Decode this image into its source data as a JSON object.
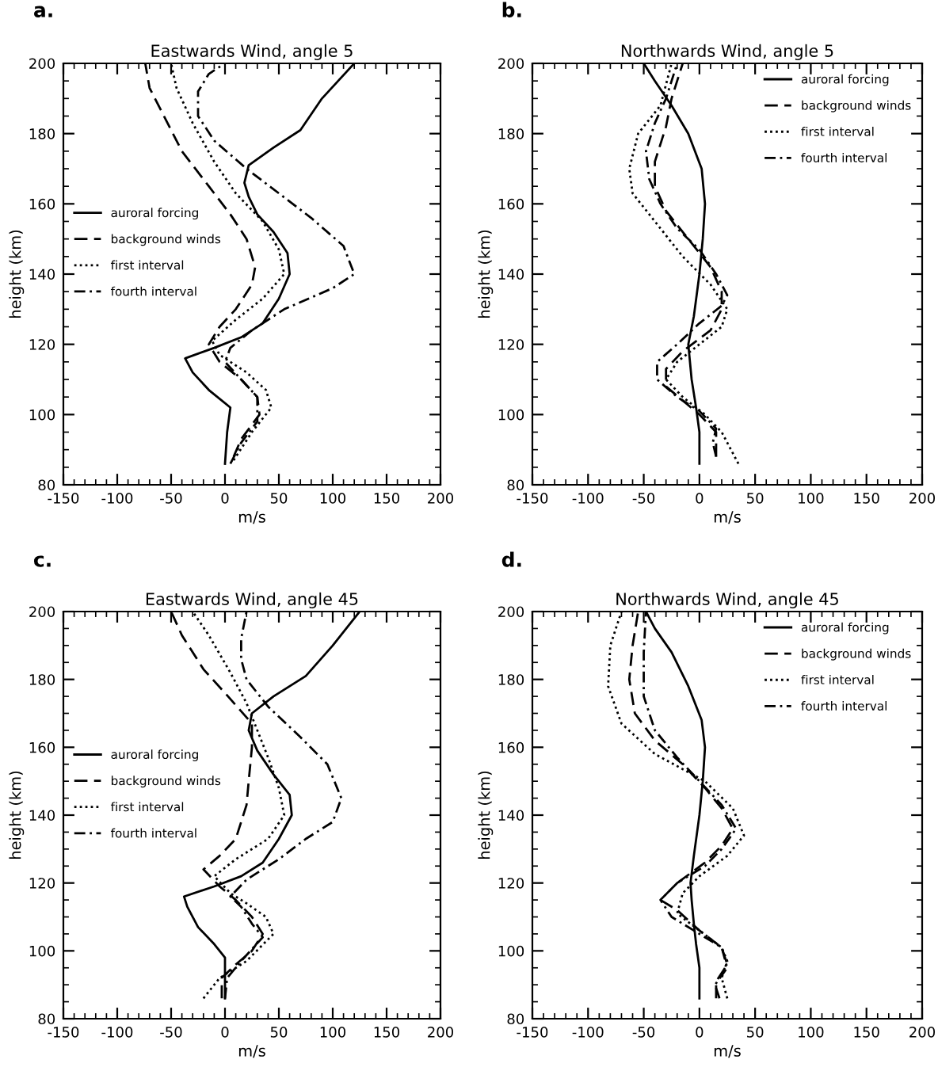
{
  "chart_data": [
    {
      "type": "line",
      "title": "Eastwards Wind, angle 5",
      "xlabel": "m/s",
      "ylabel": "height (km)",
      "annotations": [
        "a."
      ],
      "xlim": [
        -150,
        200
      ],
      "xticks": [
        -150,
        -100,
        -50,
        0,
        50,
        100,
        150,
        200
      ],
      "ylim": [
        80,
        200
      ],
      "yticks": [
        80,
        100,
        120,
        140,
        160,
        180,
        200
      ],
      "grid": false,
      "legend": "center left",
      "marker": "none",
      "series": [
        {
          "name": "auroral forcing",
          "color": "#000000",
          "line_style": "solid",
          "x": [
            0,
            2,
            5,
            -15,
            -30,
            -37,
            -10,
            15,
            35,
            50,
            60,
            58,
            45,
            30,
            22,
            18,
            22,
            45,
            70,
            90,
            120
          ],
          "values": [
            86,
            95,
            102,
            107,
            112,
            116,
            119,
            122,
            126,
            133,
            140,
            146,
            152,
            157,
            162,
            166,
            171,
            176,
            181,
            190,
            200
          ]
        },
        {
          "name": "background winds",
          "color": "#000000",
          "line_style": "dashed",
          "x": [
            8,
            15,
            32,
            30,
            15,
            -5,
            -15,
            -5,
            10,
            25,
            28,
            20,
            5,
            -15,
            -40,
            -60,
            -70,
            -74
          ],
          "values": [
            88,
            93,
            100,
            105,
            110,
            115,
            120,
            125,
            130,
            137,
            142,
            150,
            157,
            165,
            175,
            187,
            193,
            200
          ]
        },
        {
          "name": "first interval",
          "color": "#000000",
          "line_style": "dotted",
          "x": [
            8,
            25,
            43,
            38,
            20,
            -5,
            -12,
            10,
            35,
            55,
            50,
            35,
            10,
            -10,
            -30,
            -45,
            -50
          ],
          "values": [
            87,
            95,
            102,
            107,
            112,
            117,
            121,
            127,
            133,
            140,
            147,
            155,
            163,
            172,
            183,
            193,
            200
          ]
        },
        {
          "name": "fourth interval",
          "color": "#000000",
          "line_style": "dashdot",
          "x": [
            5,
            15,
            30,
            30,
            15,
            0,
            5,
            25,
            55,
            100,
            120,
            110,
            80,
            50,
            20,
            -10,
            -25,
            -25,
            -15,
            0
          ],
          "values": [
            86,
            92,
            98,
            105,
            110,
            115,
            119,
            124,
            130,
            136,
            140,
            148,
            156,
            163,
            170,
            178,
            185,
            192,
            197,
            200
          ]
        }
      ]
    },
    {
      "type": "line",
      "title": "Northwards Wind, angle 5",
      "xlabel": "m/s",
      "ylabel": "height (km)",
      "annotations": [
        "b."
      ],
      "xlim": [
        -150,
        200
      ],
      "xticks": [
        -150,
        -100,
        -50,
        0,
        50,
        100,
        150,
        200
      ],
      "ylim": [
        80,
        200
      ],
      "yticks": [
        80,
        100,
        120,
        140,
        160,
        180,
        200
      ],
      "grid": false,
      "legend": "top right",
      "marker": "none",
      "series": [
        {
          "name": "auroral forcing",
          "color": "#000000",
          "line_style": "solid",
          "x": [
            0,
            0,
            -3,
            -7,
            -10,
            -5,
            0,
            3,
            5,
            2,
            -10,
            -25,
            -40,
            -50
          ],
          "values": [
            86,
            95,
            102,
            110,
            120,
            128,
            140,
            150,
            160,
            170,
            180,
            188,
            195,
            200
          ]
        },
        {
          "name": "background winds",
          "color": "#000000",
          "line_style": "dashed",
          "x": [
            15,
            15,
            0,
            -15,
            -30,
            -30,
            -15,
            10,
            20,
            20,
            10,
            -10,
            -30,
            -40,
            -40,
            -30,
            -25,
            -15
          ],
          "values": [
            88,
            95,
            100,
            104,
            108,
            113,
            118,
            124,
            130,
            135,
            142,
            150,
            158,
            165,
            172,
            182,
            190,
            200
          ]
        },
        {
          "name": "first interval",
          "color": "#000000",
          "line_style": "dotted",
          "x": [
            35,
            20,
            5,
            -15,
            -30,
            -20,
            0,
            20,
            25,
            10,
            -15,
            -40,
            -60,
            -63,
            -55,
            -35,
            -25
          ],
          "values": [
            86,
            95,
            100,
            105,
            110,
            115,
            120,
            125,
            130,
            137,
            145,
            155,
            163,
            170,
            180,
            188,
            200
          ]
        },
        {
          "name": "fourth interval",
          "color": "#000000",
          "line_style": "dashdot",
          "x": [
            15,
            12,
            15,
            0,
            -20,
            -38,
            -38,
            -20,
            0,
            20,
            25,
            15,
            0,
            -20,
            -35,
            -45,
            -48,
            -40,
            -30,
            -20
          ],
          "values": [
            88,
            92,
            96,
            101,
            105,
            110,
            115,
            120,
            126,
            131,
            134,
            140,
            147,
            153,
            160,
            167,
            175,
            183,
            190,
            200
          ]
        }
      ]
    },
    {
      "type": "line",
      "title": "Eastwards Wind, angle 45",
      "xlabel": "m/s",
      "ylabel": "height (km)",
      "annotations": [
        "c."
      ],
      "xlim": [
        -150,
        200
      ],
      "xticks": [
        -150,
        -100,
        -50,
        0,
        50,
        100,
        150,
        200
      ],
      "ylim": [
        80,
        200
      ],
      "yticks": [
        80,
        100,
        120,
        140,
        160,
        180,
        200
      ],
      "grid": false,
      "legend": "center left",
      "marker": "none",
      "series": [
        {
          "name": "auroral forcing",
          "color": "#000000",
          "line_style": "solid",
          "x": [
            0,
            0,
            0,
            -10,
            -25,
            -35,
            -38,
            -10,
            15,
            35,
            50,
            62,
            60,
            45,
            30,
            22,
            25,
            45,
            75,
            100,
            125
          ],
          "values": [
            86,
            93,
            98,
            102,
            107,
            113,
            116,
            119,
            122,
            126,
            133,
            140,
            146,
            152,
            159,
            165,
            170,
            175,
            181,
            190,
            200
          ]
        },
        {
          "name": "background winds",
          "color": "#000000",
          "line_style": "dashed",
          "x": [
            -3,
            -3,
            10,
            25,
            35,
            25,
            10,
            -5,
            -20,
            -5,
            10,
            20,
            22,
            25,
            25,
            0,
            -20,
            -40,
            -50
          ],
          "values": [
            86,
            92,
            96,
            100,
            105,
            110,
            115,
            119,
            124,
            128,
            133,
            143,
            150,
            160,
            167,
            176,
            183,
            193,
            200
          ]
        },
        {
          "name": "first interval",
          "color": "#000000",
          "line_style": "dotted",
          "x": [
            -20,
            -5,
            20,
            45,
            38,
            20,
            5,
            -10,
            10,
            40,
            55,
            50,
            40,
            30,
            20,
            5,
            -15,
            -30
          ],
          "values": [
            86,
            92,
            97,
            105,
            110,
            114,
            117,
            122,
            127,
            133,
            140,
            148,
            157,
            165,
            173,
            182,
            193,
            200
          ]
        },
        {
          "name": "fourth interval",
          "color": "#000000",
          "line_style": "dashdot",
          "x": [
            0,
            2,
            15,
            35,
            25,
            15,
            5,
            20,
            50,
            75,
            100,
            108,
            95,
            70,
            40,
            20,
            15,
            15,
            20
          ],
          "values": [
            86,
            92,
            97,
            104,
            108,
            113,
            116,
            121,
            127,
            133,
            138,
            145,
            155,
            163,
            172,
            180,
            186,
            192,
            200
          ]
        }
      ]
    },
    {
      "type": "line",
      "title": "Northwards Wind, angle 45",
      "xlabel": "m/s",
      "ylabel": "height (km)",
      "annotations": [
        "d."
      ],
      "xlim": [
        -150,
        200
      ],
      "xticks": [
        -150,
        -100,
        -50,
        0,
        50,
        100,
        150,
        200
      ],
      "ylim": [
        80,
        200
      ],
      "yticks": [
        80,
        100,
        120,
        140,
        160,
        180,
        200
      ],
      "grid": false,
      "legend": "top right",
      "marker": "none",
      "series": [
        {
          "name": "auroral forcing",
          "color": "#000000",
          "line_style": "solid",
          "x": [
            0,
            0,
            -3,
            -5,
            -7,
            -8,
            -5,
            0,
            3,
            5,
            2,
            -10,
            -25,
            -40,
            -48
          ],
          "values": [
            86,
            95,
            102,
            108,
            115,
            120,
            128,
            140,
            150,
            160,
            168,
            178,
            188,
            195,
            200
          ]
        },
        {
          "name": "background winds",
          "color": "#000000",
          "line_style": "dashed",
          "x": [
            15,
            15,
            25,
            20,
            0,
            -20,
            -35,
            -20,
            5,
            20,
            30,
            20,
            5,
            -15,
            -40,
            -58,
            -63,
            -60,
            -55
          ],
          "values": [
            86,
            91,
            96,
            101,
            106,
            112,
            115,
            120,
            126,
            131,
            136,
            142,
            148,
            155,
            162,
            170,
            180,
            190,
            200
          ]
        },
        {
          "name": "first interval",
          "color": "#000000",
          "line_style": "dotted",
          "x": [
            25,
            20,
            25,
            20,
            0,
            -20,
            -15,
            0,
            25,
            40,
            30,
            5,
            -40,
            -70,
            -82,
            -80,
            -70
          ],
          "values": [
            86,
            92,
            97,
            101,
            106,
            111,
            117,
            122,
            128,
            134,
            142,
            150,
            158,
            167,
            178,
            190,
            200
          ]
        },
        {
          "name": "fourth interval",
          "color": "#000000",
          "line_style": "dashdot",
          "x": [
            18,
            14,
            25,
            20,
            -5,
            -25,
            -35,
            -20,
            5,
            20,
            33,
            20,
            0,
            -20,
            -40,
            -50,
            -50,
            -48
          ],
          "values": [
            86,
            90,
            95,
            101,
            106,
            110,
            115,
            120,
            125,
            130,
            136,
            143,
            150,
            157,
            165,
            175,
            188,
            200
          ]
        }
      ]
    }
  ]
}
